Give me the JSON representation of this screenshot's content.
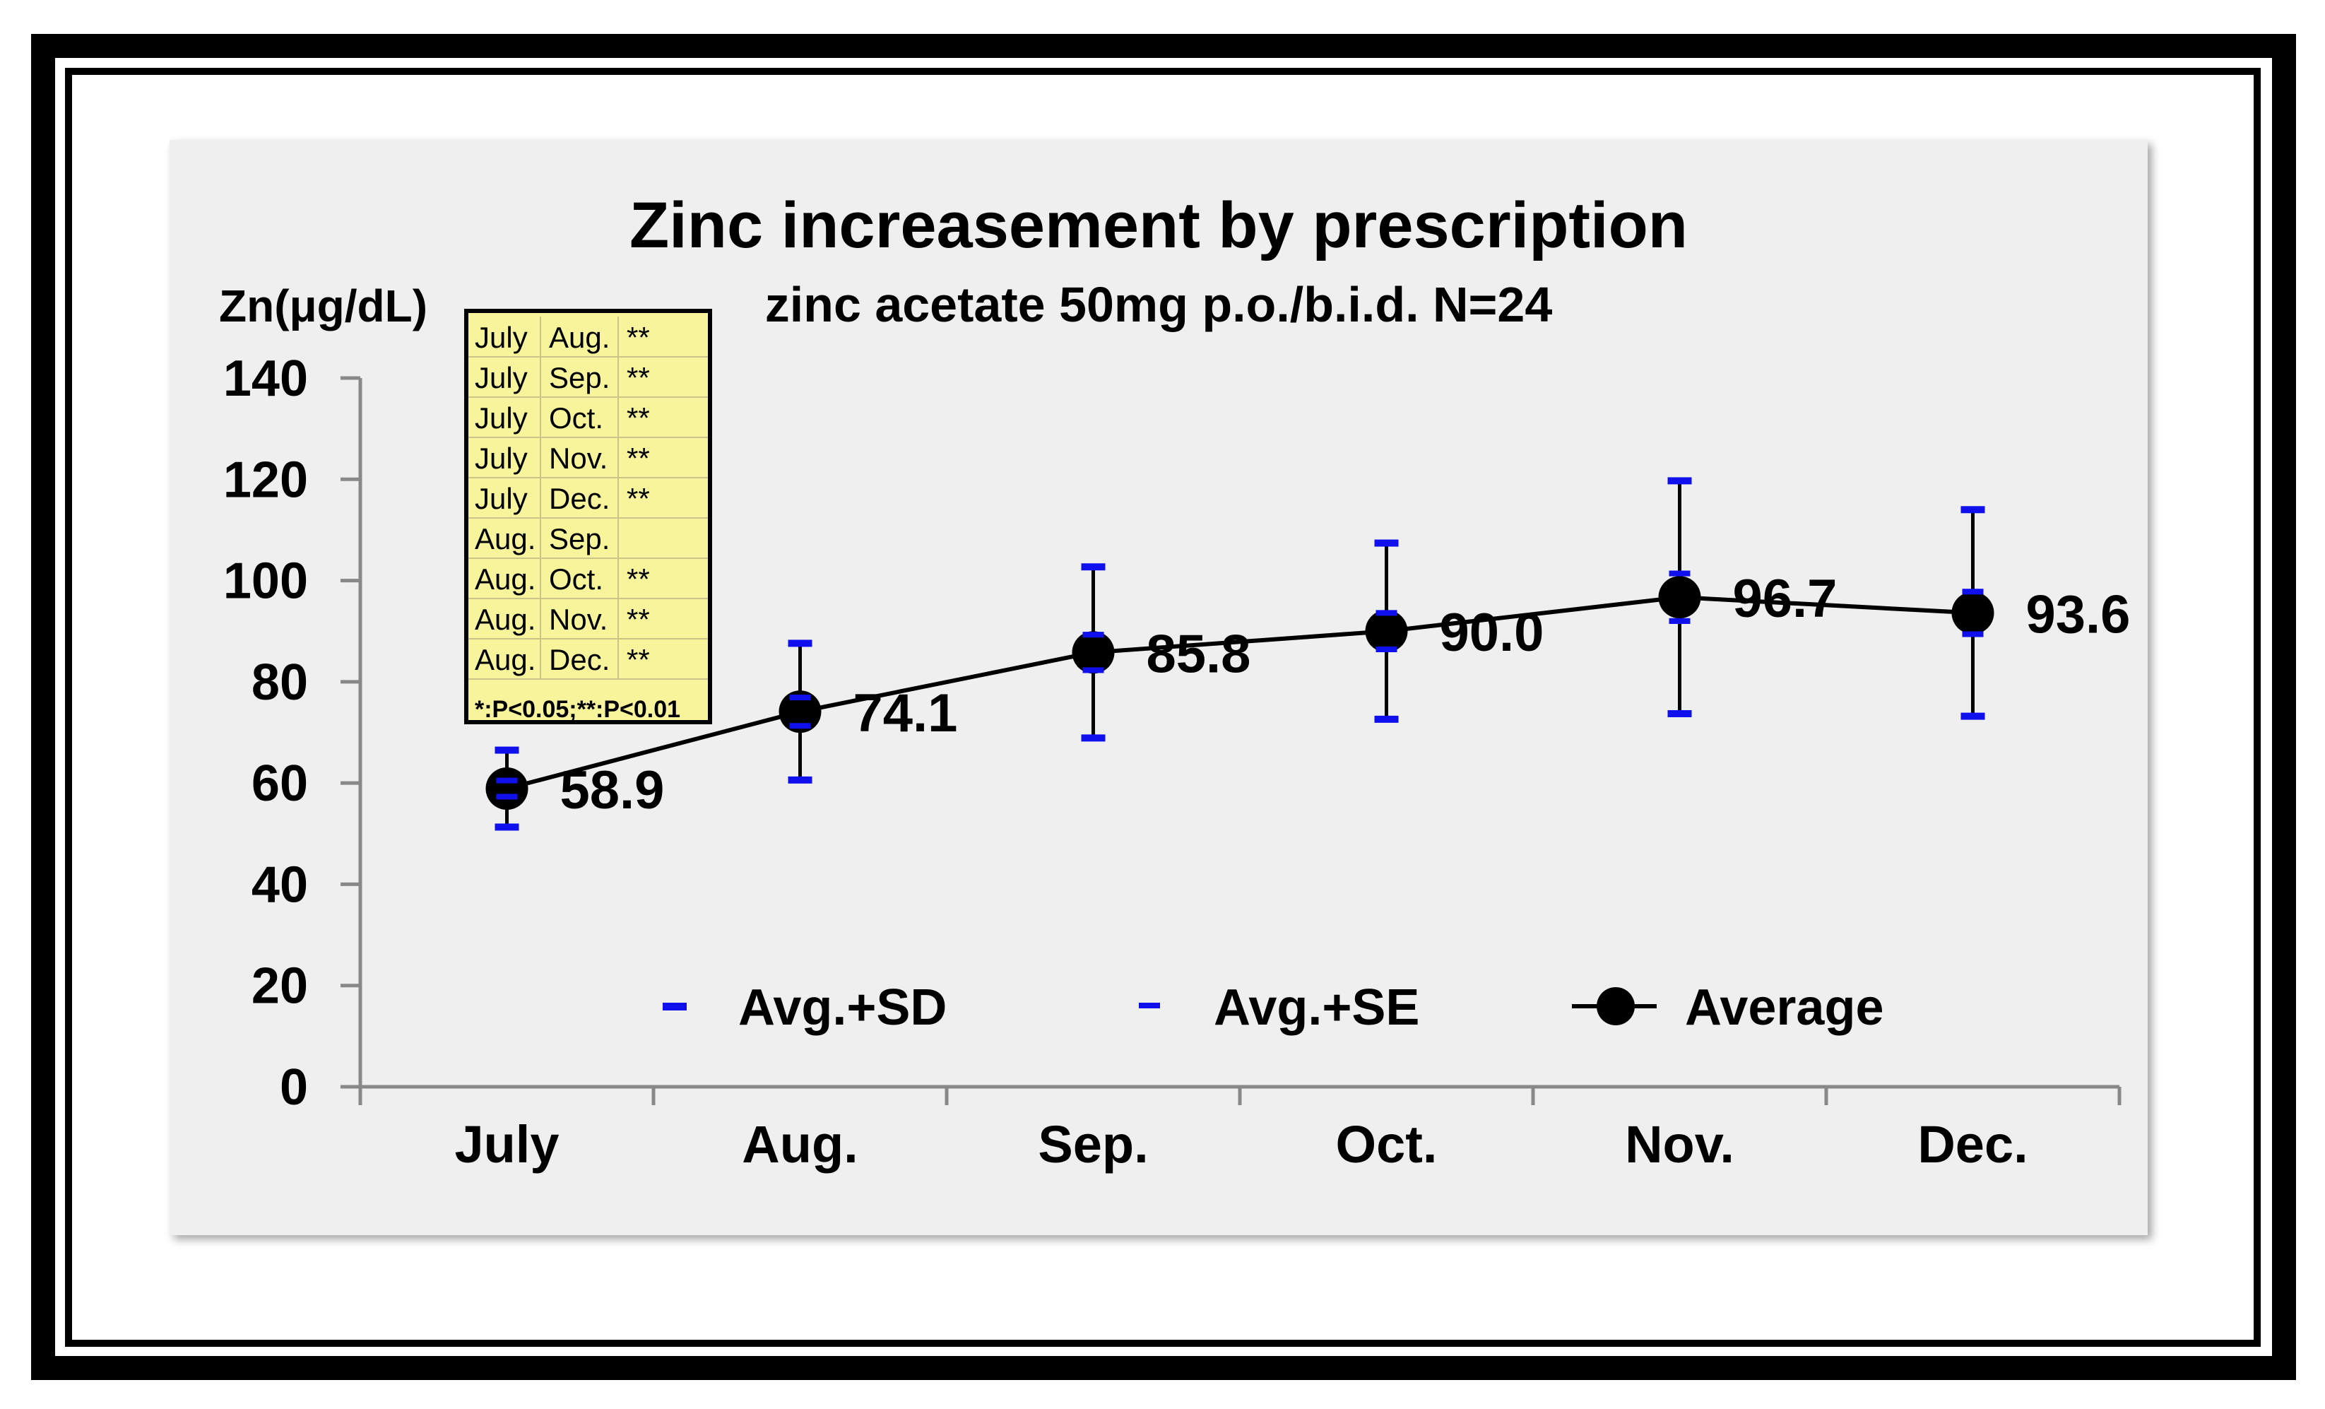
{
  "chart_data": {
    "type": "line",
    "title": "Zinc increasement by prescription",
    "subtitle": "zinc acetate 50mg p.o./b.i.d.  N=24",
    "ylabel": "Zn(μg/dL)",
    "xlabel": "",
    "ylim": [
      0,
      140
    ],
    "yticks": [
      0,
      20,
      40,
      60,
      80,
      100,
      120,
      140
    ],
    "categories": [
      "July",
      "Aug.",
      "Sep.",
      "Oct.",
      "Nov.",
      "Dec."
    ],
    "series": [
      {
        "name": "Average",
        "values": [
          58.9,
          74.1,
          85.8,
          90.0,
          96.7,
          93.6
        ],
        "labels": [
          "58.9",
          "74.1",
          "85.8",
          "90.0",
          "96.7",
          "93.6"
        ],
        "color": "#000000"
      }
    ],
    "sd": [
      7.6,
      13.5,
      16.9,
      17.4,
      23.0,
      20.4
    ],
    "se": [
      1.6,
      2.8,
      3.5,
      3.6,
      4.7,
      4.2
    ],
    "legend": [
      "Avg.+SD",
      "Avg.+SE",
      "Average"
    ],
    "legend_position": "bottom-inside",
    "significance_table": {
      "rows": [
        [
          "July",
          "Aug.",
          "**"
        ],
        [
          "July",
          "Sep.",
          "**"
        ],
        [
          "July",
          "Oct.",
          "**"
        ],
        [
          "July",
          "Nov.",
          "**"
        ],
        [
          "July",
          "Dec.",
          "**"
        ],
        [
          "Aug.",
          "Sep.",
          ""
        ],
        [
          "Aug.",
          "Oct.",
          "**"
        ],
        [
          "Aug.",
          "Nov.",
          "**"
        ],
        [
          "Aug.",
          "Dec.",
          "**"
        ]
      ],
      "footnote": "*:P<0.05;**:P<0.01"
    },
    "colors": {
      "plot_background": "#efefef",
      "error_cap": "#1010ee",
      "table_fill": "#f8f49c",
      "line": "#000000"
    }
  }
}
